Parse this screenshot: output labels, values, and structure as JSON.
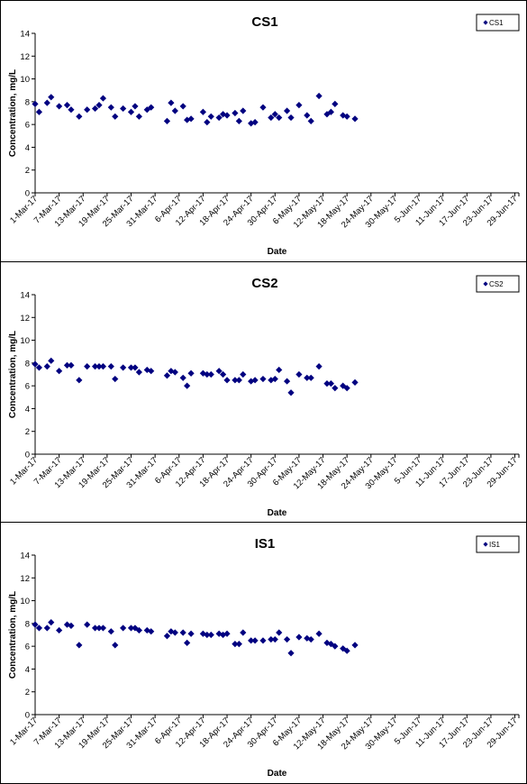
{
  "chart_data": [
    {
      "type": "scatter",
      "title": "CS1",
      "xlabel": "Date",
      "ylabel": "Concentration, mg/L",
      "ylim": [
        0,
        14
      ],
      "yticks": [
        "0",
        "2",
        "4",
        "6",
        "8",
        "10",
        "12",
        "14"
      ],
      "xticks": [
        "1-Mar-17",
        "7-Mar-17",
        "13-Mar-17",
        "19-Mar-17",
        "25-Mar-17",
        "31-Mar-17",
        "6-Apr-17",
        "12-Apr-17",
        "18-Apr-17",
        "24-Apr-17",
        "30-Apr-17",
        "6-May-17",
        "12-May-17",
        "18-May-17",
        "24-May-17",
        "30-May-17",
        "5-Jun-17",
        "11-Jun-17",
        "17-Jun-17",
        "23-Jun-17",
        "29-Jun-17"
      ],
      "grid": false,
      "legend_position": "top-right",
      "series": [
        {
          "name": "CS1",
          "color": "#000080",
          "points": [
            [
              "1-Mar-17",
              7.8
            ],
            [
              "2-Mar-17",
              7.1
            ],
            [
              "4-Mar-17",
              7.9
            ],
            [
              "5-Mar-17",
              8.4
            ],
            [
              "7-Mar-17",
              7.6
            ],
            [
              "9-Mar-17",
              7.7
            ],
            [
              "10-Mar-17",
              7.3
            ],
            [
              "12-Mar-17",
              6.7
            ],
            [
              "14-Mar-17",
              7.3
            ],
            [
              "16-Mar-17",
              7.4
            ],
            [
              "17-Mar-17",
              7.7
            ],
            [
              "18-Mar-17",
              8.3
            ],
            [
              "20-Mar-17",
              7.5
            ],
            [
              "21-Mar-17",
              6.7
            ],
            [
              "23-Mar-17",
              7.4
            ],
            [
              "25-Mar-17",
              7.1
            ],
            [
              "26-Mar-17",
              7.6
            ],
            [
              "27-Mar-17",
              6.7
            ],
            [
              "29-Mar-17",
              7.3
            ],
            [
              "30-Mar-17",
              7.5
            ],
            [
              "3-Apr-17",
              6.3
            ],
            [
              "4-Apr-17",
              7.9
            ],
            [
              "5-Apr-17",
              7.2
            ],
            [
              "7-Apr-17",
              7.6
            ],
            [
              "8-Apr-17",
              6.4
            ],
            [
              "9-Apr-17",
              6.5
            ],
            [
              "12-Apr-17",
              7.1
            ],
            [
              "13-Apr-17",
              6.2
            ],
            [
              "14-Apr-17",
              6.7
            ],
            [
              "16-Apr-17",
              6.6
            ],
            [
              "17-Apr-17",
              6.9
            ],
            [
              "18-Apr-17",
              6.8
            ],
            [
              "20-Apr-17",
              7.0
            ],
            [
              "21-Apr-17",
              6.3
            ],
            [
              "22-Apr-17",
              7.2
            ],
            [
              "24-Apr-17",
              6.1
            ],
            [
              "25-Apr-17",
              6.2
            ],
            [
              "27-Apr-17",
              7.5
            ],
            [
              "29-Apr-17",
              6.6
            ],
            [
              "30-Apr-17",
              6.9
            ],
            [
              "1-May-17",
              6.6
            ],
            [
              "3-May-17",
              7.2
            ],
            [
              "4-May-17",
              6.6
            ],
            [
              "6-May-17",
              7.7
            ],
            [
              "8-May-17",
              6.8
            ],
            [
              "9-May-17",
              6.3
            ],
            [
              "11-May-17",
              8.5
            ],
            [
              "13-May-17",
              6.9
            ],
            [
              "14-May-17",
              7.1
            ],
            [
              "15-May-17",
              7.8
            ],
            [
              "17-May-17",
              6.8
            ],
            [
              "18-May-17",
              6.7
            ],
            [
              "20-May-17",
              6.5
            ]
          ]
        }
      ]
    },
    {
      "type": "scatter",
      "title": "CS2",
      "xlabel": "Date",
      "ylabel": "Concentration, mg/L",
      "ylim": [
        0,
        14
      ],
      "yticks": [
        "0",
        "2",
        "4",
        "6",
        "8",
        "10",
        "12",
        "14"
      ],
      "xticks": [
        "1-Mar-17",
        "7-Mar-17",
        "13-Mar-17",
        "19-Mar-17",
        "25-Mar-17",
        "31-Mar-17",
        "6-Apr-17",
        "12-Apr-17",
        "18-Apr-17",
        "24-Apr-17",
        "30-Apr-17",
        "6-May-17",
        "12-May-17",
        "18-May-17",
        "24-May-17",
        "30-May-17",
        "5-Jun-17",
        "11-Jun-17",
        "17-Jun-17",
        "23-Jun-17",
        "29-Jun-17"
      ],
      "grid": false,
      "legend_position": "top-right",
      "series": [
        {
          "name": "CS2",
          "color": "#000080",
          "points": [
            [
              "1-Mar-17",
              7.9
            ],
            [
              "2-Mar-17",
              7.6
            ],
            [
              "4-Mar-17",
              7.7
            ],
            [
              "5-Mar-17",
              8.2
            ],
            [
              "7-Mar-17",
              7.3
            ],
            [
              "9-Mar-17",
              7.8
            ],
            [
              "10-Mar-17",
              7.8
            ],
            [
              "12-Mar-17",
              6.5
            ],
            [
              "14-Mar-17",
              7.7
            ],
            [
              "16-Mar-17",
              7.7
            ],
            [
              "17-Mar-17",
              7.7
            ],
            [
              "18-Mar-17",
              7.7
            ],
            [
              "20-Mar-17",
              7.7
            ],
            [
              "21-Mar-17",
              6.6
            ],
            [
              "23-Mar-17",
              7.6
            ],
            [
              "25-Mar-17",
              7.6
            ],
            [
              "26-Mar-17",
              7.6
            ],
            [
              "27-Mar-17",
              7.2
            ],
            [
              "29-Mar-17",
              7.4
            ],
            [
              "30-Mar-17",
              7.3
            ],
            [
              "3-Apr-17",
              6.9
            ],
            [
              "4-Apr-17",
              7.3
            ],
            [
              "5-Apr-17",
              7.2
            ],
            [
              "7-Apr-17",
              6.7
            ],
            [
              "8-Apr-17",
              6.0
            ],
            [
              "9-Apr-17",
              7.1
            ],
            [
              "12-Apr-17",
              7.1
            ],
            [
              "13-Apr-17",
              7.0
            ],
            [
              "14-Apr-17",
              7.0
            ],
            [
              "16-Apr-17",
              7.3
            ],
            [
              "17-Apr-17",
              7.0
            ],
            [
              "18-Apr-17",
              6.5
            ],
            [
              "20-Apr-17",
              6.5
            ],
            [
              "21-Apr-17",
              6.5
            ],
            [
              "22-Apr-17",
              7.0
            ],
            [
              "24-Apr-17",
              6.4
            ],
            [
              "25-Apr-17",
              6.5
            ],
            [
              "27-Apr-17",
              6.6
            ],
            [
              "29-Apr-17",
              6.5
            ],
            [
              "30-Apr-17",
              6.6
            ],
            [
              "1-May-17",
              7.4
            ],
            [
              "3-May-17",
              6.4
            ],
            [
              "4-May-17",
              5.4
            ],
            [
              "6-May-17",
              7.0
            ],
            [
              "8-May-17",
              6.7
            ],
            [
              "9-May-17",
              6.7
            ],
            [
              "11-May-17",
              7.7
            ],
            [
              "13-May-17",
              6.2
            ],
            [
              "14-May-17",
              6.2
            ],
            [
              "15-May-17",
              5.8
            ],
            [
              "17-May-17",
              6.0
            ],
            [
              "18-May-17",
              5.8
            ],
            [
              "20-May-17",
              6.3
            ]
          ]
        }
      ]
    },
    {
      "type": "scatter",
      "title": "IS1",
      "xlabel": "Date",
      "ylabel": "Concentration, mg/L",
      "ylim": [
        0,
        14
      ],
      "yticks": [
        "0",
        "2",
        "4",
        "6",
        "8",
        "10",
        "12",
        "14"
      ],
      "xticks": [
        "1-Mar-17",
        "7-Mar-17",
        "13-Mar-17",
        "19-Mar-17",
        "25-Mar-17",
        "31-Mar-17",
        "6-Apr-17",
        "12-Apr-17",
        "18-Apr-17",
        "24-Apr-17",
        "30-Apr-17",
        "6-May-17",
        "12-May-17",
        "18-May-17",
        "24-May-17",
        "30-May-17",
        "5-Jun-17",
        "11-Jun-17",
        "17-Jun-17",
        "23-Jun-17",
        "29-Jun-17"
      ],
      "grid": false,
      "legend_position": "top-right",
      "series": [
        {
          "name": "IS1",
          "color": "#000080",
          "points": [
            [
              "1-Mar-17",
              7.9
            ],
            [
              "2-Mar-17",
              7.6
            ],
            [
              "4-Mar-17",
              7.6
            ],
            [
              "5-Mar-17",
              8.1
            ],
            [
              "7-Mar-17",
              7.4
            ],
            [
              "9-Mar-17",
              7.9
            ],
            [
              "10-Mar-17",
              7.8
            ],
            [
              "12-Mar-17",
              6.1
            ],
            [
              "14-Mar-17",
              7.9
            ],
            [
              "16-Mar-17",
              7.6
            ],
            [
              "17-Mar-17",
              7.6
            ],
            [
              "18-Mar-17",
              7.6
            ],
            [
              "20-Mar-17",
              7.3
            ],
            [
              "21-Mar-17",
              6.1
            ],
            [
              "23-Mar-17",
              7.6
            ],
            [
              "25-Mar-17",
              7.6
            ],
            [
              "26-Mar-17",
              7.6
            ],
            [
              "27-Mar-17",
              7.4
            ],
            [
              "29-Mar-17",
              7.4
            ],
            [
              "30-Mar-17",
              7.3
            ],
            [
              "3-Apr-17",
              6.9
            ],
            [
              "4-Apr-17",
              7.3
            ],
            [
              "5-Apr-17",
              7.2
            ],
            [
              "7-Apr-17",
              7.2
            ],
            [
              "8-Apr-17",
              6.3
            ],
            [
              "9-Apr-17",
              7.1
            ],
            [
              "12-Apr-17",
              7.1
            ],
            [
              "13-Apr-17",
              7.0
            ],
            [
              "14-Apr-17",
              7.0
            ],
            [
              "16-Apr-17",
              7.1
            ],
            [
              "17-Apr-17",
              7.0
            ],
            [
              "18-Apr-17",
              7.1
            ],
            [
              "20-Apr-17",
              6.2
            ],
            [
              "21-Apr-17",
              6.2
            ],
            [
              "22-Apr-17",
              7.2
            ],
            [
              "24-Apr-17",
              6.5
            ],
            [
              "25-Apr-17",
              6.5
            ],
            [
              "27-Apr-17",
              6.5
            ],
            [
              "29-Apr-17",
              6.6
            ],
            [
              "30-Apr-17",
              6.6
            ],
            [
              "1-May-17",
              7.2
            ],
            [
              "3-May-17",
              6.6
            ],
            [
              "4-May-17",
              5.4
            ],
            [
              "6-May-17",
              6.8
            ],
            [
              "8-May-17",
              6.7
            ],
            [
              "9-May-17",
              6.6
            ],
            [
              "11-May-17",
              7.1
            ],
            [
              "13-May-17",
              6.3
            ],
            [
              "14-May-17",
              6.2
            ],
            [
              "15-May-17",
              6.0
            ],
            [
              "17-May-17",
              5.8
            ],
            [
              "18-May-17",
              5.6
            ],
            [
              "20-May-17",
              6.1
            ]
          ]
        }
      ]
    }
  ]
}
